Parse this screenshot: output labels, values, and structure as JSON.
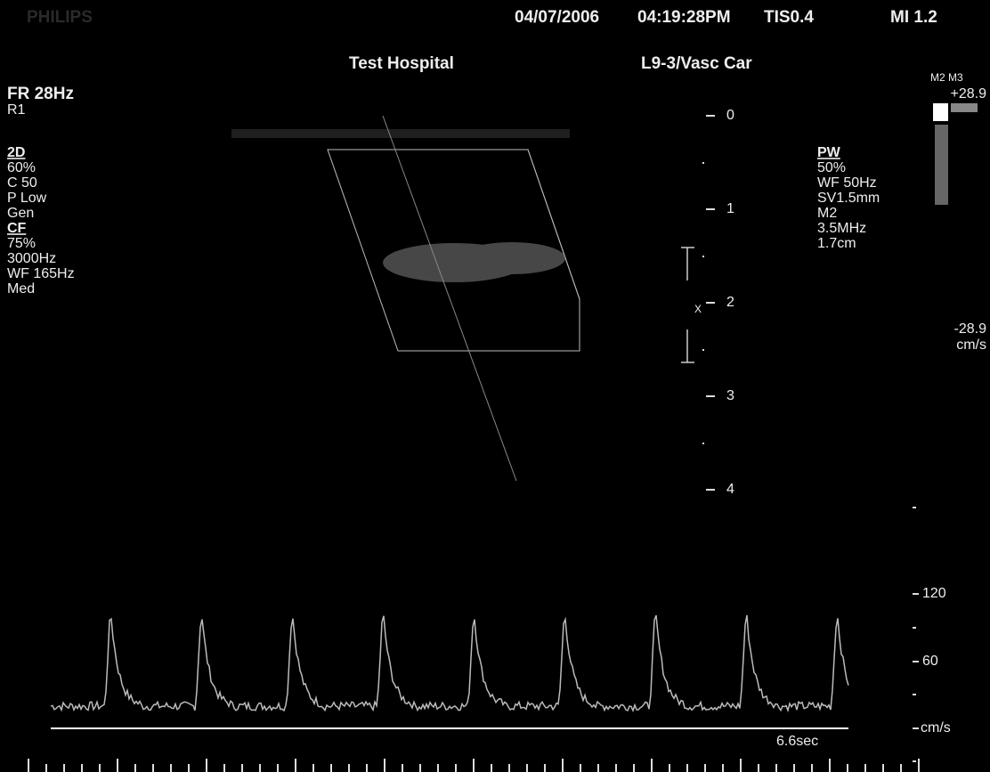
{
  "header": {
    "brand": "PHILIPS",
    "date": "04/07/2006",
    "time": "04:19:28PM",
    "tis": "TIS0.4",
    "mi": "MI 1.2",
    "institution": "Test Hospital",
    "transducer": "L9-3/Vasc Car"
  },
  "left_panel": {
    "frame_rate": "FR 28Hz",
    "resolution": "R1",
    "sections": [
      {
        "title": "2D",
        "lines": [
          "60%",
          "C 50",
          "P Low",
          "Gen"
        ]
      },
      {
        "title": "CF",
        "lines": [
          "75%",
          "3000Hz",
          "WF 165Hz",
          "Med"
        ]
      }
    ]
  },
  "right_panel": {
    "title": "PW",
    "lines": [
      "50%",
      "WF  50Hz",
      "SV1.5mm",
      "M2",
      "3.5MHz",
      "1.7cm"
    ]
  },
  "color_bar": {
    "label": "M2 M3",
    "max": "+28.9",
    "min": "-28.9",
    "unit": "cm/s"
  },
  "depth_scale": {
    "labels": [
      0,
      1,
      2,
      3,
      4
    ],
    "gate_label": "X"
  },
  "doppler_scale": {
    "labels": [
      120,
      60
    ],
    "unit": "cm/s",
    "sweep": "6.6sec"
  }
}
